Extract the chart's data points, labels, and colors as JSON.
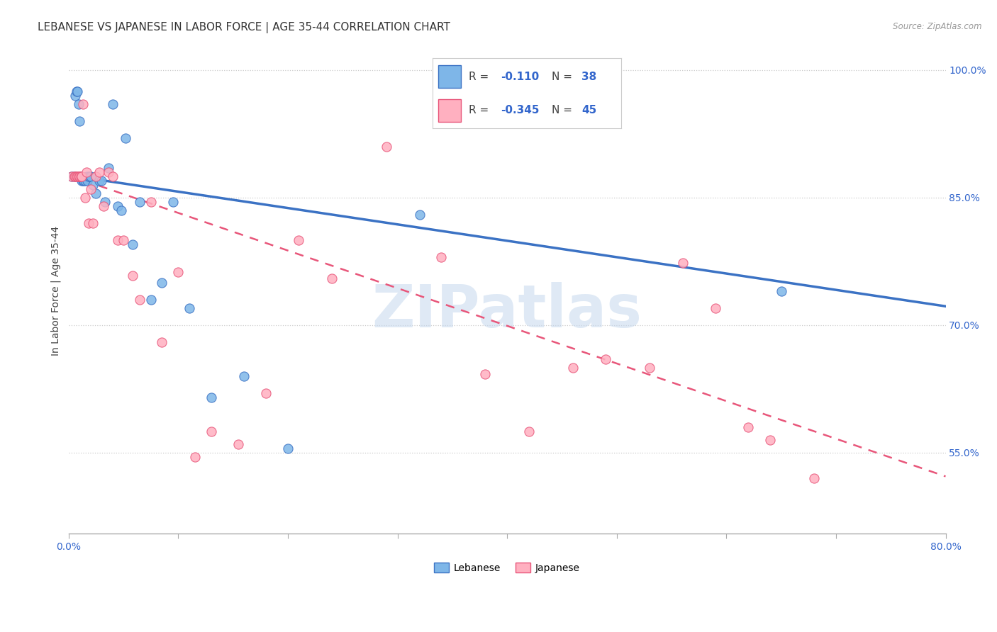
{
  "title": "LEBANESE VS JAPANESE IN LABOR FORCE | AGE 35-44 CORRELATION CHART",
  "source": "Source: ZipAtlas.com",
  "ylabel": "In Labor Force | Age 35-44",
  "xlim": [
    0.0,
    0.8
  ],
  "ylim": [
    0.455,
    1.025
  ],
  "xticks": [
    0.0,
    0.1,
    0.2,
    0.3,
    0.4,
    0.5,
    0.6,
    0.7,
    0.8
  ],
  "xticklabels": [
    "0.0%",
    "",
    "",
    "",
    "",
    "",
    "",
    "",
    "80.0%"
  ],
  "yticks": [
    0.55,
    0.7,
    0.85,
    1.0
  ],
  "yticklabels": [
    "55.0%",
    "70.0%",
    "85.0%",
    "100.0%"
  ],
  "legend_r_leb": "-0.110",
  "legend_n_leb": "38",
  "legend_r_jap": "-0.345",
  "legend_n_jap": "45",
  "leb_color": "#7EB6E8",
  "jap_color": "#FFB0C0",
  "leb_line_color": "#3B72C4",
  "jap_line_color": "#E8567A",
  "watermark": "ZIPatlas",
  "watermark_color": "#C5D8EE",
  "title_fontsize": 11,
  "axis_label_fontsize": 10,
  "tick_fontsize": 10,
  "legend_fontsize": 12,
  "leb_trend_x0": 0.0,
  "leb_trend_y0": 0.876,
  "leb_trend_x1": 0.8,
  "leb_trend_y1": 0.722,
  "jap_trend_x0": 0.0,
  "jap_trend_y0": 0.876,
  "jap_trend_x1": 0.8,
  "jap_trend_y1": 0.522,
  "leb_scatter_x": [
    0.003,
    0.005,
    0.006,
    0.007,
    0.008,
    0.009,
    0.01,
    0.011,
    0.012,
    0.013,
    0.014,
    0.015,
    0.016,
    0.017,
    0.018,
    0.019,
    0.02,
    0.022,
    0.025,
    0.028,
    0.03,
    0.033,
    0.036,
    0.04,
    0.045,
    0.048,
    0.052,
    0.058,
    0.065,
    0.075,
    0.085,
    0.095,
    0.11,
    0.13,
    0.16,
    0.2,
    0.32,
    0.65
  ],
  "leb_scatter_y": [
    0.875,
    0.875,
    0.97,
    0.975,
    0.975,
    0.96,
    0.94,
    0.875,
    0.87,
    0.87,
    0.87,
    0.87,
    0.875,
    0.87,
    0.875,
    0.875,
    0.875,
    0.865,
    0.855,
    0.87,
    0.87,
    0.845,
    0.885,
    0.96,
    0.84,
    0.835,
    0.92,
    0.795,
    0.845,
    0.73,
    0.75,
    0.845,
    0.72,
    0.615,
    0.64,
    0.555,
    0.83,
    0.74
  ],
  "jap_scatter_x": [
    0.003,
    0.005,
    0.006,
    0.007,
    0.008,
    0.009,
    0.01,
    0.011,
    0.012,
    0.013,
    0.015,
    0.016,
    0.018,
    0.02,
    0.022,
    0.025,
    0.028,
    0.032,
    0.036,
    0.04,
    0.045,
    0.05,
    0.058,
    0.065,
    0.075,
    0.085,
    0.1,
    0.115,
    0.13,
    0.155,
    0.18,
    0.21,
    0.24,
    0.29,
    0.34,
    0.38,
    0.42,
    0.46,
    0.49,
    0.53,
    0.56,
    0.59,
    0.62,
    0.64,
    0.68
  ],
  "jap_scatter_y": [
    0.875,
    0.875,
    0.875,
    0.875,
    0.875,
    0.875,
    0.875,
    0.875,
    0.875,
    0.96,
    0.85,
    0.88,
    0.82,
    0.86,
    0.82,
    0.875,
    0.88,
    0.84,
    0.88,
    0.875,
    0.8,
    0.8,
    0.758,
    0.73,
    0.845,
    0.68,
    0.762,
    0.545,
    0.575,
    0.56,
    0.62,
    0.8,
    0.755,
    0.91,
    0.78,
    0.642,
    0.575,
    0.65,
    0.66,
    0.65,
    0.773,
    0.72,
    0.58,
    0.565,
    0.52
  ]
}
